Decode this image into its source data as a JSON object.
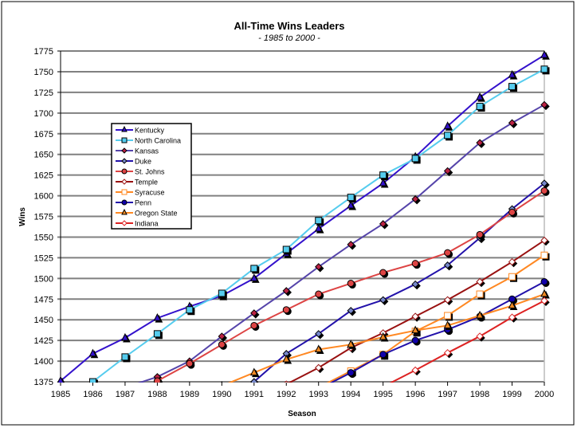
{
  "chart_data": {
    "type": "line",
    "title": "All-Time Wins Leaders",
    "subtitle": "- 1985 to 2000 -",
    "xlabel": "Season",
    "ylabel": "Wins",
    "ylim": [
      1375,
      1775
    ],
    "ystep": 25,
    "x": [
      1985,
      1986,
      1987,
      1988,
      1989,
      1990,
      1991,
      1992,
      1993,
      1994,
      1995,
      1996,
      1997,
      1998,
      1999,
      2000
    ],
    "legend_placement": "upper-left",
    "series": [
      {
        "name": "Kentucky",
        "color": "#3311cc",
        "marker": "triangle",
        "fill": "#3311cc",
        "values": [
          1376,
          1409,
          1428,
          1452,
          1466,
          1479,
          1500,
          1530,
          1560,
          1588,
          1615,
          1647,
          1684,
          1719,
          1746,
          1770
        ]
      },
      {
        "name": "North Carolina",
        "color": "#55ccee",
        "marker": "square",
        "fill": "#55ccee",
        "values": [
          null,
          1375,
          1405,
          1433,
          1462,
          1482,
          1512,
          1535,
          1570,
          1598,
          1625,
          1645,
          1673,
          1708,
          1732,
          1753
        ]
      },
      {
        "name": "Kansas",
        "color": "#5544aa",
        "marker": "diamond",
        "fill": "#bb2244",
        "values": [
          null,
          null,
          1368,
          1381,
          1400,
          1430,
          1458,
          1485,
          1514,
          1541,
          1566,
          1596,
          1630,
          1664,
          1688,
          1710
        ]
      },
      {
        "name": "Duke",
        "color": "#2211aa",
        "marker": "diamond",
        "fill": "#7788cc",
        "values": [
          null,
          null,
          null,
          null,
          null,
          null,
          1375,
          1409,
          1433,
          1461,
          1474,
          1493,
          1516,
          1549,
          1584,
          1615
        ]
      },
      {
        "name": "St. Johns",
        "color": "#dd4444",
        "marker": "circle",
        "fill": "#dd4444",
        "values": [
          null,
          null,
          null,
          1376,
          1397,
          1420,
          1443,
          1462,
          1481,
          1494,
          1507,
          1518,
          1531,
          1553,
          1580,
          1606
        ]
      },
      {
        "name": "Temple",
        "color": "#991111",
        "marker": "diamond",
        "fill": "#ffffff",
        "values": [
          null,
          null,
          null,
          null,
          null,
          null,
          null,
          1372,
          1392,
          1416,
          1434,
          1454,
          1474,
          1496,
          1520,
          1546
        ]
      },
      {
        "name": "Syracuse",
        "color": "#ff8822",
        "marker": "square",
        "fill": "#ffffff",
        "values": [
          null,
          null,
          null,
          null,
          null,
          null,
          null,
          null,
          1368,
          1388,
          1408,
          1436,
          1455,
          1481,
          1502,
          1528
        ]
      },
      {
        "name": "Penn",
        "color": "#2211aa",
        "marker": "circle",
        "fill": "#1100aa",
        "values": [
          null,
          null,
          null,
          null,
          null,
          null,
          null,
          null,
          1366,
          1386,
          1408,
          1425,
          1438,
          1454,
          1475,
          1496
        ]
      },
      {
        "name": "Oregon State",
        "color": "#ff8822",
        "marker": "triangle",
        "fill": "#ee8822",
        "values": [
          null,
          null,
          null,
          null,
          null,
          1370,
          1386,
          1402,
          1414,
          1420,
          1429,
          1437,
          1443,
          1455,
          1467,
          1481
        ]
      },
      {
        "name": "Indiana",
        "color": "#dd2222",
        "marker": "diamond",
        "fill": "#ffffff",
        "values": [
          null,
          null,
          null,
          null,
          null,
          null,
          null,
          null,
          null,
          null,
          1369,
          1389,
          1410,
          1430,
          1453,
          1473
        ]
      }
    ]
  }
}
